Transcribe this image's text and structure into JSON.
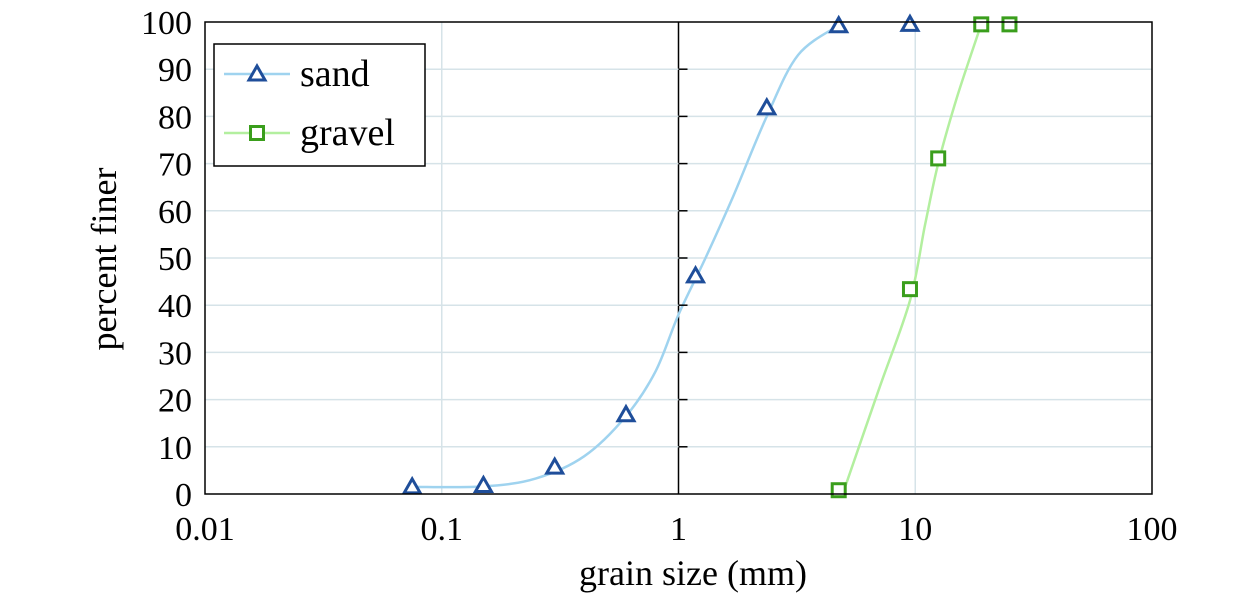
{
  "chart_data": {
    "type": "scatter",
    "xscale": "log",
    "xlim": [
      0.01,
      100
    ],
    "ylim": [
      0,
      100
    ],
    "grid": true,
    "legend_position": "top-left",
    "xlabel": "grain size (mm)",
    "ylabel": "percent finer",
    "x_ticks": [
      "0.01",
      "0.1",
      "1",
      "10",
      "100"
    ],
    "y_ticks": [
      "0",
      "10",
      "20",
      "30",
      "40",
      "50",
      "60",
      "70",
      "80",
      "90",
      "100"
    ],
    "series": [
      {
        "name": "sand",
        "marker": "triangle",
        "marker_color": "#1f4e9a",
        "line_color": "#9fd3ef",
        "x": [
          0.075,
          0.15,
          0.3,
          0.6,
          1.18,
          2.36,
          4.75,
          9.5
        ],
        "y": [
          1.5,
          1.8,
          5.7,
          16.8,
          46.2,
          81.8,
          99.2,
          99.5
        ],
        "curve": [
          [
            0.075,
            1.5
          ],
          [
            0.15,
            1.6
          ],
          [
            0.25,
            3.3
          ],
          [
            0.4,
            8
          ],
          [
            0.6,
            16.5
          ],
          [
            0.8,
            26
          ],
          [
            1,
            38
          ],
          [
            1.3,
            50
          ],
          [
            1.7,
            63
          ],
          [
            2.36,
            80
          ],
          [
            3.2,
            93
          ],
          [
            4.75,
            99.3
          ]
        ]
      },
      {
        "name": "gravel",
        "marker": "square",
        "marker_color": "#3a9e1c",
        "line_color": "#b3ef9f",
        "x": [
          4.75,
          9.5,
          12.5,
          19,
          25
        ],
        "y": [
          0.8,
          43.4,
          71.1,
          99.5,
          99.5
        ],
        "curve": [
          [
            5,
            0.8
          ],
          [
            7,
            22
          ],
          [
            9.5,
            41
          ],
          [
            11,
            57
          ],
          [
            12.5,
            70
          ],
          [
            15,
            84
          ],
          [
            19,
            99.5
          ]
        ]
      }
    ]
  }
}
